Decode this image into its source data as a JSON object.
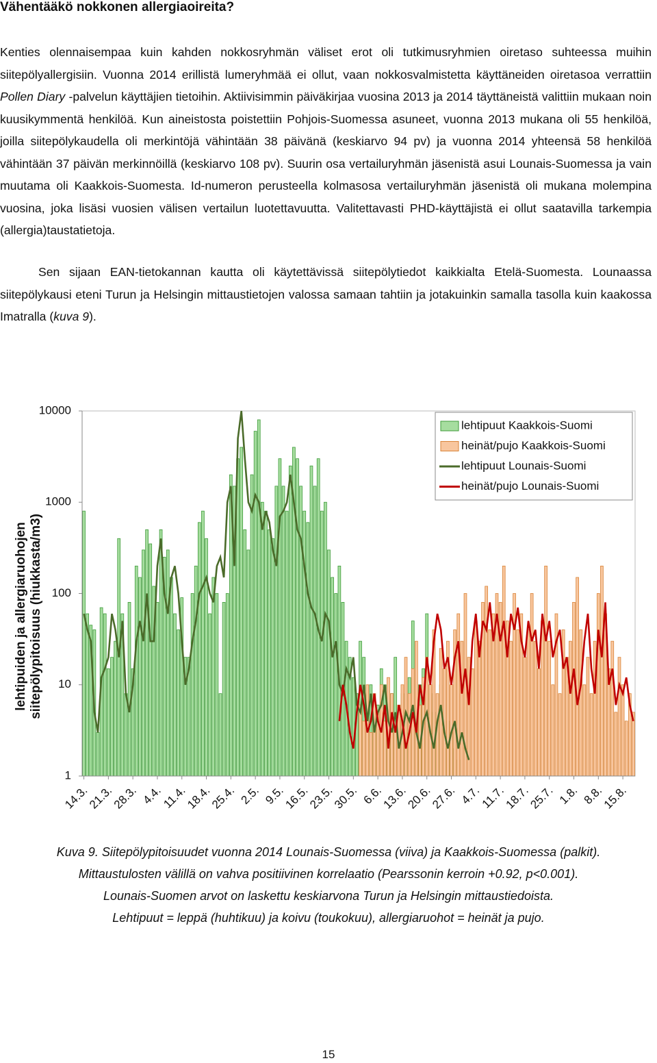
{
  "header": {
    "title": "Vähentääkö nokkonen allergiaoireita?"
  },
  "paragraphs": [
    [
      "Kenties olennaisempaa kuin kahden nokkosryhmän väliset erot oli tutkimusryhmien oiretaso suhteessa muihin siitepölyallergisiin. Vuonna 2014 erillistä lumeryhmää ei ollut, vaan nokkosvalmistetta käyttäneiden oiretasoa verrattiin ",
      "Pollen Diary",
      " -palvelun käyttäjien tietoihin. Aktiivisimmin päiväkirjaa vuosina 2013 ja 2014 täyttäneistä valittiin mukaan noin kuusikymmentä henkilöä. Kun aineistosta poistettiin Pohjois-Suomessa asuneet, vuonna 2013 mukana oli 55 henkilöä, joilla siitepölykaudella oli merkintöjä vähintään 38 päivänä (keskiarvo 94 pv) ja vuonna 2014 yhteensä 58 henkilöä vähintään 37 päivän merkinnöillä (keskiarvo 108 pv). Suurin osa vertailuryhmän jäsenistä asui Lounais-Suomessa ja vain muutama oli Kaakkois-Suomesta. Id-numeron perusteella kolmasosa vertailuryhmän jäsenistä oli mukana molempina vuosina, joka lisäsi vuosien välisen vertailun luotettavuutta. Valitettavasti PHD-käyttäjistä ei ollut saatavilla tarkempia (allergia)taustatietoja."
    ],
    [
      "Sen sijaan EAN-tietokannan kautta oli käytettävissä siitepölytiedot kaikkialta Etelä-Suomesta. Lounaassa siitepölykausi eteni Turun ja Helsingin mittaustietojen valossa samaan tahtiin ja jotakuinkin samalla tasolla kuin kaakossa Imatralla (",
      "kuva 9",
      ")."
    ]
  ],
  "chart_data": {
    "type": "bar",
    "y_label": [
      "lehtipuiden ja allergiaruohojen",
      "siitepölypitoisuus (hiukkasta/m3)"
    ],
    "categories": [
      "14.3.",
      null,
      null,
      null,
      null,
      null,
      null,
      "21.3.",
      null,
      null,
      null,
      null,
      null,
      null,
      "28.3.",
      null,
      null,
      null,
      null,
      null,
      null,
      "4.4.",
      null,
      null,
      null,
      null,
      null,
      null,
      "11.4.",
      null,
      null,
      null,
      null,
      null,
      null,
      "18.4.",
      null,
      null,
      null,
      null,
      null,
      null,
      "25.4.",
      null,
      null,
      null,
      null,
      null,
      null,
      "2.5.",
      null,
      null,
      null,
      null,
      null,
      null,
      "9.5.",
      null,
      null,
      null,
      null,
      null,
      null,
      "16.5.",
      null,
      null,
      null,
      null,
      null,
      null,
      "23.5.",
      null,
      null,
      null,
      null,
      null,
      null,
      "30.5.",
      null,
      null,
      null,
      null,
      null,
      null,
      "6.6.",
      null,
      null,
      null,
      null,
      null,
      null,
      "13.6.",
      null,
      null,
      null,
      null,
      null,
      null,
      "20.6.",
      null,
      null,
      null,
      null,
      null,
      null,
      "27.6.",
      null,
      null,
      null,
      null,
      null,
      null,
      "4.7.",
      null,
      null,
      null,
      null,
      null,
      null,
      "11.7.",
      null,
      null,
      null,
      null,
      null,
      null,
      "18.7.",
      null,
      null,
      null,
      null,
      null,
      null,
      "25.7.",
      null,
      null,
      null,
      null,
      null,
      null,
      "1.8.",
      null,
      null,
      null,
      null,
      null,
      null,
      "8.8.",
      null,
      null,
      null,
      null,
      null,
      null,
      "15.8.",
      null,
      null,
      null
    ],
    "series": [
      {
        "name": "lehtipuut Kaakkois-Suomi",
        "mark": "bar",
        "color": "#a6dd9f",
        "stroke": "#3f9b3a",
        "values": [
          800,
          60,
          45,
          40,
          3,
          70,
          60,
          15,
          20,
          30,
          400,
          60,
          8,
          80,
          15,
          200,
          150,
          300,
          500,
          350,
          120,
          80,
          500,
          250,
          300,
          150,
          60,
          40,
          90,
          20,
          20,
          100,
          200,
          600,
          800,
          400,
          60,
          150,
          100,
          8,
          80,
          100,
          2000,
          1500,
          3000,
          4000,
          500,
          300,
          2000,
          6000,
          8000,
          1000,
          800,
          500,
          400,
          1500,
          3000,
          1500,
          800,
          2500,
          4000,
          3000,
          1500,
          800,
          600,
          2500,
          1500,
          3000,
          800,
          1000,
          300,
          150,
          100,
          200,
          80,
          30,
          20,
          12,
          8,
          30,
          20,
          5,
          10,
          4,
          6,
          15,
          10,
          3,
          8,
          20,
          5,
          8,
          3,
          12,
          50,
          6,
          10,
          15,
          60,
          8,
          5,
          3,
          10,
          2,
          4,
          3,
          2,
          1.5,
          null,
          null,
          null,
          null,
          null,
          null,
          null,
          null,
          null,
          null,
          null,
          null,
          null,
          null,
          null,
          null,
          null,
          null,
          null,
          null,
          null,
          null,
          null,
          null,
          null,
          null,
          null,
          null,
          null,
          null,
          null,
          null,
          null,
          null,
          null,
          null,
          null,
          null,
          null,
          null,
          null,
          null,
          null,
          null,
          null,
          null,
          null,
          null,
          null,
          null
        ]
      },
      {
        "name": "heinät/pujo Kaakkois-Suomi",
        "mark": "bar",
        "color": "#f8c69e",
        "stroke": "#d98439",
        "values": [
          null,
          null,
          null,
          null,
          null,
          null,
          null,
          null,
          null,
          null,
          null,
          null,
          null,
          null,
          null,
          null,
          null,
          null,
          null,
          null,
          null,
          null,
          null,
          null,
          null,
          null,
          null,
          null,
          null,
          null,
          null,
          null,
          null,
          null,
          null,
          null,
          null,
          null,
          null,
          null,
          null,
          null,
          null,
          null,
          null,
          null,
          null,
          null,
          null,
          null,
          null,
          null,
          null,
          null,
          null,
          null,
          null,
          null,
          null,
          null,
          null,
          null,
          null,
          null,
          null,
          null,
          null,
          null,
          null,
          null,
          null,
          null,
          null,
          null,
          null,
          null,
          null,
          null,
          null,
          6,
          4,
          10,
          3,
          8,
          5,
          10,
          4,
          12,
          8,
          3,
          6,
          10,
          20,
          8,
          15,
          30,
          6,
          12,
          20,
          10,
          40,
          8,
          25,
          15,
          30,
          10,
          40,
          60,
          30,
          100,
          20,
          15,
          50,
          30,
          80,
          120,
          40,
          60,
          100,
          80,
          200,
          50,
          30,
          100,
          40,
          60,
          20,
          40,
          100,
          30,
          15,
          50,
          200,
          30,
          10,
          60,
          8,
          40,
          20,
          30,
          80,
          150,
          40,
          10,
          20,
          8,
          30,
          100,
          200,
          60,
          15,
          30,
          5,
          20,
          10,
          4,
          8,
          5
        ]
      },
      {
        "name": "lehtipuut Lounais-Suomi",
        "mark": "line",
        "color": "#4b6b2a",
        "values": [
          60,
          40,
          30,
          5,
          3,
          12,
          15,
          20,
          60,
          40,
          20,
          50,
          8,
          5,
          10,
          30,
          50,
          30,
          100,
          30,
          30,
          200,
          400,
          100,
          60,
          150,
          200,
          100,
          30,
          10,
          15,
          30,
          50,
          100,
          120,
          150,
          100,
          80,
          200,
          250,
          150,
          1000,
          1500,
          200,
          5000,
          10000,
          3000,
          1000,
          800,
          1200,
          1000,
          500,
          800,
          600,
          300,
          200,
          700,
          800,
          1000,
          2000,
          1000,
          500,
          400,
          200,
          100,
          70,
          60,
          40,
          30,
          60,
          50,
          20,
          30,
          10,
          8,
          15,
          12,
          20,
          6,
          5,
          10,
          4,
          8,
          3,
          5,
          6,
          10,
          4,
          3,
          5,
          2,
          3,
          5,
          4,
          6,
          3,
          2,
          4,
          5,
          3,
          2,
          4,
          6,
          3,
          2,
          3,
          4,
          2,
          3,
          2,
          1.5,
          null,
          null,
          null,
          null,
          null,
          null,
          null,
          null,
          null,
          null,
          null,
          null,
          null,
          null,
          null,
          null,
          null,
          null,
          null,
          null,
          null,
          null,
          null,
          null,
          null,
          null,
          null,
          null,
          null,
          null,
          null,
          null,
          null,
          null,
          null,
          null,
          null,
          null,
          null,
          null,
          null,
          null,
          null,
          null,
          null,
          null,
          null
        ]
      },
      {
        "name": "heinät/pujo Lounais-Suomi",
        "mark": "line",
        "color": "#c00000",
        "values": [
          null,
          null,
          null,
          null,
          null,
          null,
          null,
          null,
          null,
          null,
          null,
          null,
          null,
          null,
          null,
          null,
          null,
          null,
          null,
          null,
          null,
          null,
          null,
          null,
          null,
          null,
          null,
          null,
          null,
          null,
          null,
          null,
          null,
          null,
          null,
          null,
          null,
          null,
          null,
          null,
          null,
          null,
          null,
          null,
          null,
          null,
          null,
          null,
          null,
          null,
          null,
          null,
          null,
          null,
          null,
          null,
          null,
          null,
          null,
          null,
          null,
          null,
          null,
          null,
          null,
          null,
          null,
          null,
          null,
          null,
          null,
          null,
          null,
          4,
          10,
          6,
          3,
          2,
          5,
          10,
          6,
          3,
          4,
          8,
          4,
          3,
          6,
          2,
          5,
          3,
          6,
          4,
          2,
          3,
          5,
          3,
          10,
          6,
          20,
          10,
          30,
          60,
          40,
          15,
          20,
          10,
          20,
          30,
          8,
          15,
          6,
          30,
          60,
          20,
          50,
          40,
          80,
          30,
          60,
          30,
          50,
          20,
          60,
          40,
          70,
          30,
          20,
          50,
          30,
          40,
          15,
          60,
          30,
          50,
          20,
          30,
          40,
          15,
          20,
          8,
          15,
          6,
          10,
          30,
          60,
          15,
          8,
          40,
          20,
          80,
          10,
          15,
          6,
          10,
          8,
          12,
          6,
          4
        ]
      }
    ],
    "log_scale": true,
    "ylim": [
      1,
      10000
    ],
    "yticks": [
      1,
      10,
      100,
      1000,
      10000
    ],
    "legend": "upper right"
  },
  "caption": [
    "Kuva 9. Siitepölypitoisuudet vuonna 2014 Lounais-Suomessa (viiva) ja Kaakkois-Suomessa (palkit).",
    "Mittaustulosten välillä on vahva positiivinen korrelaatio (Pearssonin kerroin +0.92, p<0.001).",
    "Lounais-Suomen arvot on laskettu keskiarvona Turun ja Helsingin mittaustiedoista.",
    "Lehtipuut = leppä (huhtikuu) ja koivu (toukokuu), allergiaruohot = heinät ja pujo."
  ],
  "page_number": "15"
}
